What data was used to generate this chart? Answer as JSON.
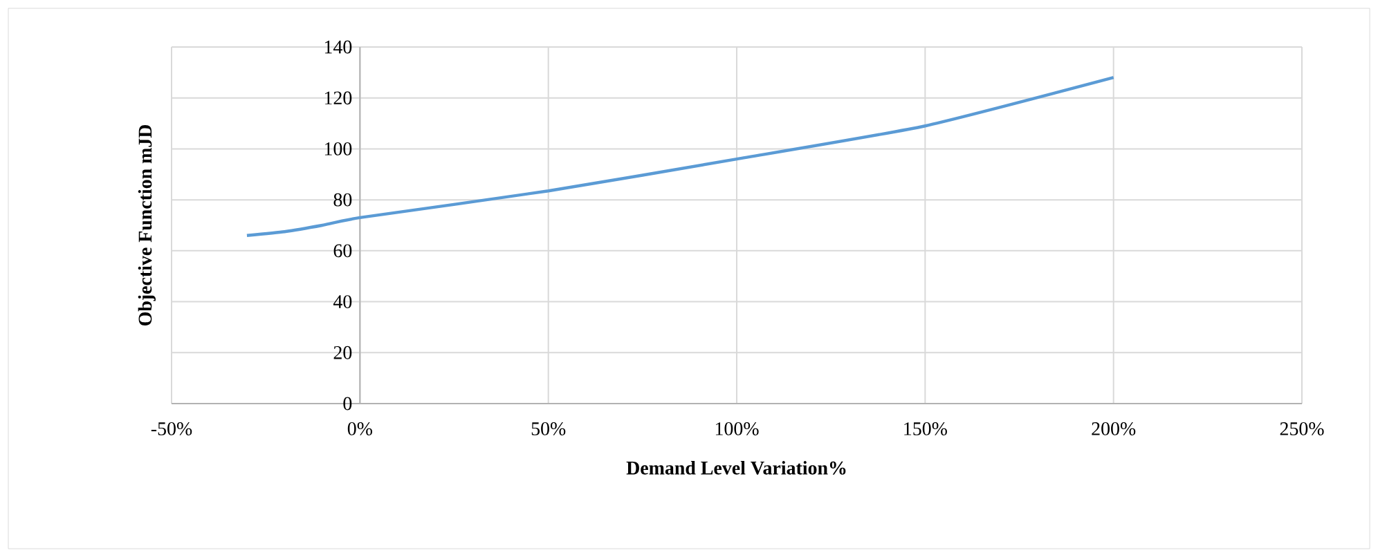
{
  "chart_data": {
    "type": "line",
    "xlabel": "Demand Level Variation%",
    "ylabel": "Objective Function mJD",
    "x": [
      -30,
      -20,
      -10,
      0,
      50,
      100,
      150,
      200
    ],
    "series": [
      {
        "color": "#5b9bd5",
        "values": [
          66,
          67.5,
          70,
          73,
          83.5,
          96,
          109,
          128
        ]
      }
    ],
    "xlim": [
      -50,
      250
    ],
    "xticks": [
      {
        "value": -50,
        "label": "-50%"
      },
      {
        "value": 0,
        "label": "0%"
      },
      {
        "value": 50,
        "label": "50%"
      },
      {
        "value": 100,
        "label": "100%"
      },
      {
        "value": 150,
        "label": "150%"
      },
      {
        "value": 200,
        "label": "200%"
      },
      {
        "value": 250,
        "label": "250%"
      }
    ],
    "ylim": [
      0,
      140
    ],
    "yticks": [
      0,
      20,
      40,
      60,
      80,
      100,
      120,
      140
    ],
    "grid": true,
    "marker": "none",
    "line_style": "solid"
  }
}
